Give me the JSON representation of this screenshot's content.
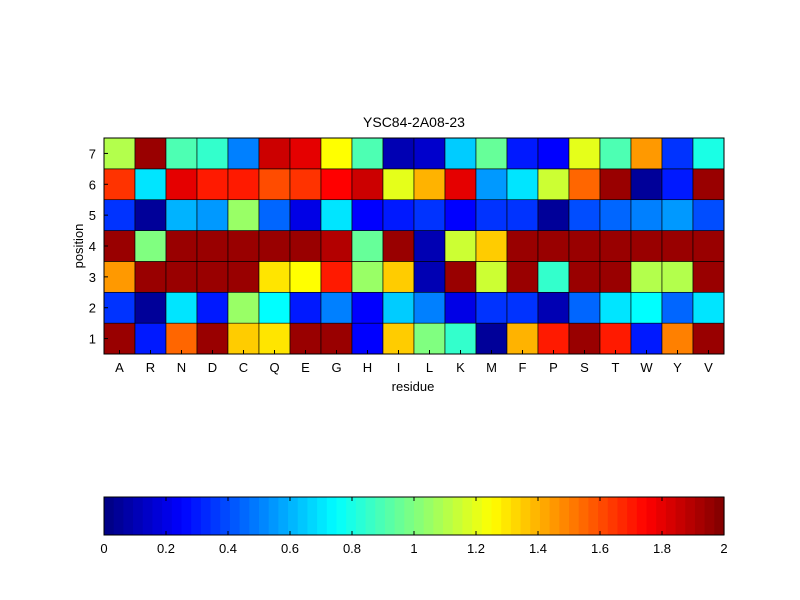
{
  "chart_data": {
    "type": "heatmap",
    "title": "YSC84-2A08-23",
    "xlabel": "residue",
    "ylabel": "position",
    "x_categories": [
      "A",
      "R",
      "N",
      "D",
      "C",
      "Q",
      "E",
      "G",
      "H",
      "I",
      "L",
      "K",
      "M",
      "F",
      "P",
      "S",
      "T",
      "W",
      "Y",
      "V"
    ],
    "y_categories": [
      "1",
      "2",
      "3",
      "4",
      "5",
      "6",
      "7"
    ],
    "colormap": "jet",
    "clim": [
      0,
      2
    ],
    "colorbar": {
      "orientation": "horizontal",
      "placement": "bottom",
      "ticks": [
        0,
        0.2,
        0.4,
        0.6,
        0.8,
        1,
        1.2,
        1.4,
        1.6,
        1.8,
        2
      ],
      "tick_labels": [
        "0",
        "0.2",
        "0.4",
        "0.6",
        "0.8",
        "1",
        "1.2",
        "1.4",
        "1.6",
        "1.8",
        "2"
      ]
    },
    "values": [
      [
        1.95,
        0.3,
        1.55,
        1.95,
        1.35,
        1.3,
        1.95,
        1.95,
        0.25,
        1.35,
        1.0,
        0.85,
        0.05,
        1.4,
        1.7,
        1.95,
        1.7,
        0.3,
        1.5,
        1.95
      ],
      [
        0.35,
        0.05,
        0.7,
        0.3,
        1.05,
        0.75,
        0.3,
        0.5,
        0.25,
        0.65,
        0.5,
        0.2,
        0.35,
        0.35,
        0.1,
        0.45,
        0.7,
        0.75,
        0.45,
        0.7
      ],
      [
        1.45,
        1.95,
        1.95,
        1.95,
        1.95,
        1.3,
        1.25,
        1.7,
        1.05,
        1.35,
        0.1,
        1.95,
        1.15,
        1.95,
        0.85,
        1.95,
        1.95,
        1.1,
        1.1,
        1.95
      ],
      [
        1.95,
        1.0,
        1.95,
        1.95,
        1.95,
        1.95,
        1.95,
        1.9,
        0.95,
        1.95,
        0.1,
        1.15,
        1.35,
        1.95,
        1.95,
        1.95,
        1.95,
        1.95,
        1.95,
        1.95
      ],
      [
        0.35,
        0.05,
        0.6,
        0.55,
        1.05,
        0.45,
        0.2,
        0.7,
        0.25,
        0.3,
        0.35,
        0.25,
        0.35,
        0.35,
        0.05,
        0.4,
        0.45,
        0.5,
        0.55,
        0.4
      ],
      [
        1.65,
        0.7,
        1.8,
        1.7,
        1.7,
        1.6,
        1.65,
        1.75,
        1.85,
        1.2,
        1.4,
        1.8,
        0.55,
        0.7,
        1.15,
        1.55,
        1.95,
        0.05,
        0.3,
        1.95
      ],
      [
        1.1,
        1.95,
        0.9,
        0.85,
        0.5,
        1.85,
        1.8,
        1.25,
        0.9,
        0.1,
        0.15,
        0.65,
        0.95,
        0.3,
        0.25,
        1.2,
        0.9,
        1.45,
        0.35,
        0.8
      ]
    ]
  }
}
